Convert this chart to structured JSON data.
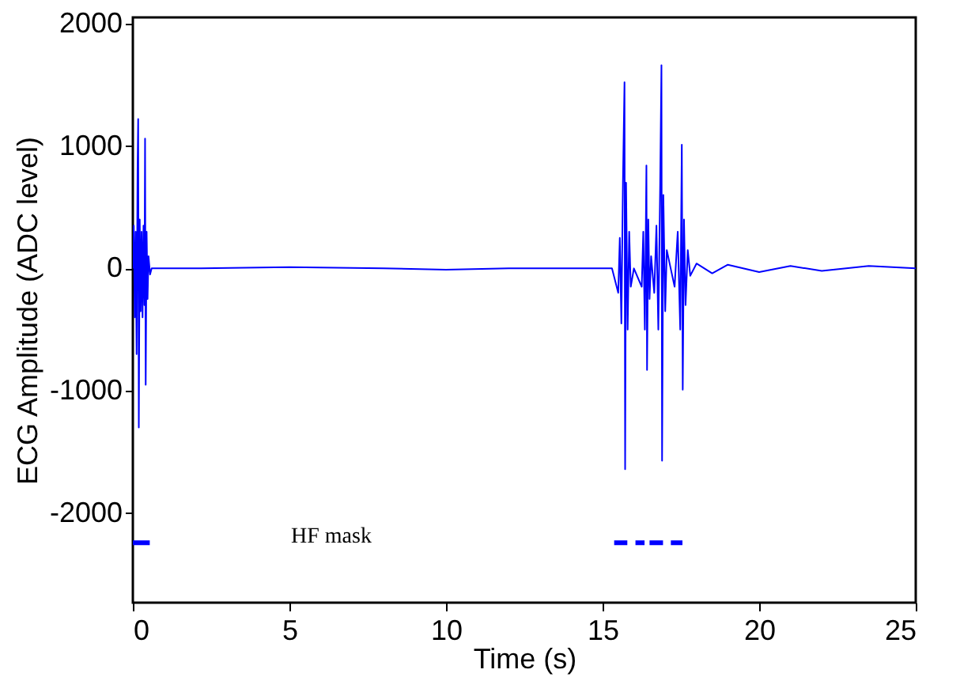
{
  "chart_data": {
    "type": "line",
    "xlabel": "Time (s)",
    "ylabel": "ECG Amplitude (ADC level)",
    "xlim": [
      0,
      25
    ],
    "xticks": [
      0,
      5,
      10,
      15,
      20,
      25
    ],
    "ylim": [
      -2730,
      2050
    ],
    "yticks": [
      -2000,
      -1000,
      0,
      1000,
      2000
    ],
    "grid": false,
    "marker": "none",
    "line_style": "solid",
    "annotations": [
      "HF mask"
    ],
    "series": [
      {
        "color": "#0000ff",
        "x": [
          0,
          0.03,
          0.06,
          0.09,
          0.12,
          0.15,
          0.17,
          0.19,
          0.22,
          0.25,
          0.28,
          0.31,
          0.34,
          0.37,
          0.39,
          0.41,
          0.44,
          0.47,
          0.5,
          0.55,
          0.6,
          2,
          5,
          8,
          10,
          12,
          15.3,
          15.5,
          15.55,
          15.6,
          15.65,
          15.7,
          15.72,
          15.75,
          15.8,
          15.85,
          15.9,
          16.0,
          16.25,
          16.3,
          16.35,
          16.4,
          16.42,
          16.46,
          16.5,
          16.55,
          16.65,
          16.72,
          16.78,
          16.84,
          16.88,
          16.9,
          16.94,
          17.0,
          17.05,
          17.3,
          17.4,
          17.48,
          17.53,
          17.56,
          17.6,
          17.65,
          17.72,
          17.8,
          18,
          18.5,
          19,
          20,
          21,
          22,
          23.5,
          25
        ],
        "values": [
          0,
          350,
          -400,
          300,
          -700,
          800,
          1220,
          -1300,
          400,
          -350,
          300,
          -400,
          350,
          -300,
          1060,
          -950,
          300,
          -250,
          100,
          -50,
          0,
          0,
          10,
          0,
          -10,
          0,
          0,
          -200,
          250,
          -450,
          700,
          1520,
          -1640,
          700,
          -500,
          300,
          -150,
          0,
          -150,
          300,
          -500,
          840,
          -830,
          400,
          -250,
          100,
          -200,
          350,
          -500,
          700,
          1660,
          -1570,
          600,
          -350,
          150,
          -150,
          300,
          -500,
          1010,
          -990,
          400,
          -300,
          150,
          -60,
          40,
          -40,
          30,
          -30,
          20,
          -20,
          20,
          0
        ]
      },
      {
        "color": "#0000ff",
        "x": [
          0,
          0.54,
          0.55,
          15.37,
          15.79,
          15.8,
          16.05,
          16.34,
          16.35,
          16.5,
          16.93,
          16.94,
          17.18,
          17.55
        ],
        "values": [
          -2240,
          -2240,
          null,
          -2240,
          -2240,
          null,
          -2240,
          -2240,
          null,
          -2240,
          -2240,
          null,
          -2240,
          -2240
        ]
      }
    ]
  }
}
